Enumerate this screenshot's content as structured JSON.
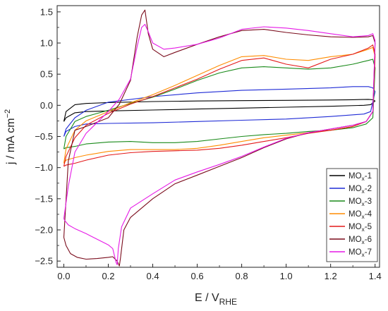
{
  "chart_data": {
    "type": "line",
    "xlabel": {
      "main": "E / V",
      "sub": "RHE"
    },
    "ylabel": {
      "main": "j / mA cm",
      "sup": "−2"
    },
    "xlim": [
      -0.03,
      1.42
    ],
    "ylim": [
      -2.6,
      1.6
    ],
    "xticks": [
      0.0,
      0.2,
      0.4,
      0.6,
      0.8,
      1.0,
      1.2,
      1.4
    ],
    "xtick_labels": [
      "0.0",
      "0.2",
      "0.4",
      "0.6",
      "0.8",
      "1.0",
      "1.2",
      "1.4"
    ],
    "yticks": [
      -2.5,
      -2.0,
      -1.5,
      -1.0,
      -0.5,
      0.0,
      0.5,
      1.0,
      1.5
    ],
    "ytick_labels": [
      "−2.5",
      "−2.0",
      "−1.5",
      "−1.0",
      "−0.5",
      "0.0",
      "0.5",
      "1.0",
      "1.5"
    ],
    "grid": false,
    "legend_position": "bottom-right",
    "series": [
      {
        "name": "MOx-1",
        "label_main": "MO",
        "label_sub": "x",
        "label_tail": "-1",
        "color": "#000000",
        "x": [
          0.0,
          0.01,
          0.05,
          0.1,
          0.2,
          0.4,
          0.6,
          0.8,
          1.0,
          1.2,
          1.35,
          1.38,
          1.4,
          1.39,
          1.37,
          1.3,
          1.2,
          1.0,
          0.8,
          0.6,
          0.4,
          0.2,
          0.1,
          0.05,
          0.01,
          0.0
        ],
        "y": [
          -0.26,
          -0.2,
          -0.12,
          -0.1,
          -0.09,
          -0.075,
          -0.06,
          -0.045,
          -0.03,
          -0.015,
          0.0,
          0.01,
          0.07,
          0.09,
          0.095,
          0.09,
          0.085,
          0.08,
          0.075,
          0.07,
          0.06,
          0.045,
          0.03,
          0.01,
          -0.1,
          -0.26
        ]
      },
      {
        "name": "MOx-2",
        "label_main": "MO",
        "label_sub": "x",
        "label_tail": "-2",
        "color": "#1f2bd6",
        "x": [
          0.0,
          0.01,
          0.05,
          0.1,
          0.2,
          0.4,
          0.6,
          0.8,
          1.0,
          1.2,
          1.35,
          1.38,
          1.4,
          1.39,
          1.37,
          1.3,
          1.2,
          1.0,
          0.8,
          0.6,
          0.4,
          0.2,
          0.1,
          0.05,
          0.01,
          0.0
        ],
        "y": [
          -0.5,
          -0.42,
          -0.34,
          -0.3,
          -0.29,
          -0.28,
          -0.26,
          -0.24,
          -0.22,
          -0.18,
          -0.14,
          -0.1,
          0.22,
          0.28,
          0.3,
          0.3,
          0.28,
          0.26,
          0.24,
          0.2,
          0.14,
          0.05,
          -0.08,
          -0.2,
          -0.38,
          -0.5
        ]
      },
      {
        "name": "MOx-3",
        "label_main": "MO",
        "label_sub": "x",
        "label_tail": "-3",
        "color": "#1a8a1a",
        "x": [
          0.0,
          0.01,
          0.05,
          0.1,
          0.2,
          0.3,
          0.4,
          0.5,
          0.6,
          0.7,
          0.8,
          0.9,
          1.0,
          1.1,
          1.2,
          1.3,
          1.36,
          1.39,
          1.4,
          1.39,
          1.37,
          1.3,
          1.2,
          1.1,
          1.0,
          0.9,
          0.8,
          0.7,
          0.6,
          0.5,
          0.4,
          0.3,
          0.2,
          0.1,
          0.05,
          0.01,
          0.0
        ],
        "y": [
          -0.7,
          -0.68,
          -0.66,
          -0.62,
          -0.59,
          -0.58,
          -0.6,
          -0.6,
          -0.58,
          -0.54,
          -0.5,
          -0.47,
          -0.45,
          -0.42,
          -0.4,
          -0.36,
          -0.3,
          -0.2,
          0.6,
          0.74,
          0.72,
          0.66,
          0.6,
          0.58,
          0.6,
          0.62,
          0.6,
          0.52,
          0.4,
          0.26,
          0.13,
          0.03,
          -0.08,
          -0.18,
          -0.26,
          -0.5,
          -0.7
        ]
      },
      {
        "name": "MOx-4",
        "label_main": "MO",
        "label_sub": "x",
        "label_tail": "-4",
        "color": "#ff8c00",
        "x": [
          0.0,
          0.01,
          0.05,
          0.1,
          0.2,
          0.3,
          0.4,
          0.5,
          0.6,
          0.7,
          0.8,
          0.9,
          1.0,
          1.1,
          1.2,
          1.3,
          1.36,
          1.39,
          1.4,
          1.39,
          1.37,
          1.3,
          1.2,
          1.1,
          1.0,
          0.9,
          0.8,
          0.7,
          0.6,
          0.5,
          0.4,
          0.3,
          0.2,
          0.1,
          0.05,
          0.01,
          0.0
        ],
        "y": [
          -0.93,
          -0.88,
          -0.84,
          -0.8,
          -0.74,
          -0.71,
          -0.71,
          -0.71,
          -0.69,
          -0.64,
          -0.58,
          -0.52,
          -0.48,
          -0.44,
          -0.4,
          -0.34,
          -0.26,
          -0.1,
          0.78,
          0.93,
          0.9,
          0.82,
          0.78,
          0.72,
          0.74,
          0.8,
          0.78,
          0.64,
          0.48,
          0.32,
          0.17,
          0.04,
          -0.1,
          -0.25,
          -0.4,
          -0.7,
          -0.93
        ]
      },
      {
        "name": "MOx-5",
        "label_main": "MO",
        "label_sub": "x",
        "label_tail": "-5",
        "color": "#e31a1a",
        "x": [
          0.0,
          0.01,
          0.05,
          0.1,
          0.2,
          0.3,
          0.4,
          0.5,
          0.6,
          0.7,
          0.8,
          0.9,
          1.0,
          1.1,
          1.2,
          1.3,
          1.36,
          1.39,
          1.4,
          1.39,
          1.37,
          1.3,
          1.2,
          1.1,
          1.0,
          0.9,
          0.8,
          0.7,
          0.6,
          0.5,
          0.4,
          0.3,
          0.2,
          0.1,
          0.05,
          0.01,
          0.0
        ],
        "y": [
          -0.98,
          -0.96,
          -0.93,
          -0.88,
          -0.8,
          -0.76,
          -0.74,
          -0.73,
          -0.72,
          -0.69,
          -0.64,
          -0.58,
          -0.52,
          -0.45,
          -0.4,
          -0.34,
          -0.26,
          -0.1,
          0.82,
          0.97,
          0.92,
          0.82,
          0.74,
          0.6,
          0.66,
          0.76,
          0.72,
          0.58,
          0.42,
          0.28,
          0.14,
          0.02,
          -0.13,
          -0.32,
          -0.52,
          -0.82,
          -0.98
        ]
      },
      {
        "name": "MOx-6",
        "label_main": "MO",
        "label_sub": "x",
        "label_tail": "-6",
        "color": "#7a0c1c",
        "x": [
          0.0,
          0.01,
          0.03,
          0.06,
          0.1,
          0.15,
          0.2,
          0.22,
          0.24,
          0.25,
          0.255,
          0.27,
          0.3,
          0.4,
          0.5,
          0.6,
          0.7,
          0.8,
          0.9,
          1.0,
          1.1,
          1.2,
          1.3,
          1.36,
          1.39,
          1.4,
          1.39,
          1.37,
          1.3,
          1.2,
          1.1,
          1.0,
          0.9,
          0.8,
          0.7,
          0.6,
          0.5,
          0.45,
          0.4,
          0.38,
          0.365,
          0.35,
          0.33,
          0.3,
          0.25,
          0.2,
          0.1,
          0.05,
          0.02,
          0.0
        ],
        "y": [
          -2.12,
          -2.25,
          -2.38,
          -2.44,
          -2.47,
          -2.46,
          -2.44,
          -2.43,
          -2.5,
          -2.58,
          -2.45,
          -2.0,
          -1.8,
          -1.5,
          -1.26,
          -1.12,
          -0.98,
          -0.84,
          -0.68,
          -0.54,
          -0.44,
          -0.38,
          -0.32,
          -0.26,
          -0.1,
          1.0,
          1.12,
          1.1,
          1.09,
          1.1,
          1.13,
          1.17,
          1.22,
          1.2,
          1.1,
          0.98,
          0.85,
          0.78,
          0.9,
          1.15,
          1.53,
          1.45,
          1.1,
          0.4,
          0.02,
          -0.2,
          -0.34,
          -0.4,
          -0.9,
          -2.12
        ]
      },
      {
        "name": "MOx-7",
        "label_main": "MO",
        "label_sub": "x",
        "label_tail": "-7",
        "color": "#e61ae6",
        "x": [
          0.0,
          0.005,
          0.02,
          0.05,
          0.1,
          0.15,
          0.2,
          0.22,
          0.235,
          0.24,
          0.245,
          0.26,
          0.3,
          0.4,
          0.5,
          0.6,
          0.7,
          0.8,
          0.9,
          1.0,
          1.1,
          1.2,
          1.3,
          1.36,
          1.39,
          1.4,
          1.39,
          1.37,
          1.3,
          1.2,
          1.1,
          1.0,
          0.9,
          0.8,
          0.7,
          0.6,
          0.5,
          0.45,
          0.4,
          0.38,
          0.365,
          0.35,
          0.33,
          0.3,
          0.25,
          0.2,
          0.1,
          0.05,
          0.02,
          0.0
        ],
        "y": [
          -1.82,
          -1.85,
          -1.92,
          -1.98,
          -2.06,
          -2.15,
          -2.24,
          -2.3,
          -2.52,
          -2.56,
          -2.3,
          -1.95,
          -1.65,
          -1.42,
          -1.2,
          -1.07,
          -0.95,
          -0.82,
          -0.67,
          -0.53,
          -0.44,
          -0.38,
          -0.32,
          -0.26,
          -0.1,
          1.04,
          1.15,
          1.12,
          1.1,
          1.15,
          1.2,
          1.24,
          1.26,
          1.22,
          1.08,
          0.98,
          0.92,
          0.9,
          1.0,
          1.18,
          1.3,
          1.25,
          0.95,
          0.42,
          0.1,
          -0.1,
          -0.45,
          -0.75,
          -1.3,
          -1.82
        ]
      }
    ]
  }
}
